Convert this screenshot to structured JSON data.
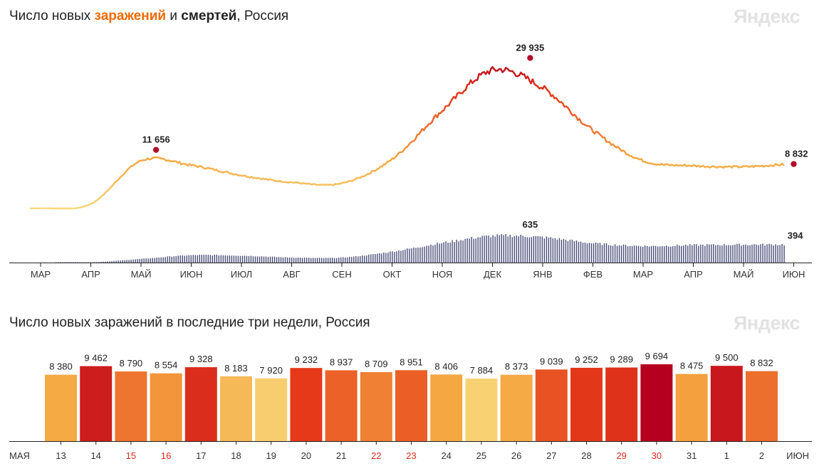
{
  "top": {
    "title_part1": "Число новых ",
    "title_infections": "заражений",
    "title_part2": " и ",
    "title_deaths": "смертей",
    "title_part3": ", Россия",
    "logo": "Яндекс"
  },
  "bottom": {
    "title": "Число новых заражений в последние три недели, Россия",
    "logo": "Яндекс"
  },
  "colors": {
    "low": "#f7d87a",
    "mid": "#f5a640",
    "high": "#e63a1a",
    "peak": "#b4001f",
    "deaths": "#4a4d78",
    "marker": "#b0102a"
  },
  "chart_data": [
    {
      "type": "line",
      "name": "new-infections",
      "title": "Число новых заражений и смертей, Россия",
      "x_months": [
        "МАР",
        "АПР",
        "МАЙ",
        "ИЮН",
        "ИЮЛ",
        "АВГ",
        "СЕН",
        "ОКТ",
        "НОЯ",
        "ДЕК",
        "ЯНВ",
        "ФЕВ",
        "МАР",
        "АПР",
        "МАЙ",
        "ИЮН"
      ],
      "infections_monthly": [
        30,
        900,
        9500,
        8600,
        6600,
        5200,
        5000,
        9800,
        19500,
        27500,
        24000,
        15500,
        9500,
        8500,
        8300,
        8832
      ],
      "infections_annotations": [
        {
          "label": "11 656",
          "value": 11656,
          "month_index": 2.3
        },
        {
          "label": "29 935",
          "value": 29935,
          "month_index": 9.75
        },
        {
          "label": "8 832",
          "value": 8832,
          "month_index": 15.0
        }
      ],
      "deaths_monthly": [
        0,
        5,
        80,
        160,
        150,
        110,
        110,
        240,
        430,
        580,
        550,
        420,
        360,
        380,
        390,
        394
      ],
      "deaths_annotations": [
        {
          "label": "635",
          "value": 635,
          "month_index": 9.75
        },
        {
          "label": "394",
          "value": 394,
          "month_index": 15.0
        }
      ],
      "ylim_infections": [
        0,
        32000
      ],
      "ylim_deaths": [
        0,
        700
      ]
    },
    {
      "type": "bar",
      "name": "last-three-weeks",
      "title": "Число новых заражений в последние три недели, Россия",
      "start_label": "МАЯ",
      "end_label": "ИЮН",
      "categories": [
        "13",
        "14",
        "15",
        "16",
        "17",
        "18",
        "19",
        "20",
        "21",
        "22",
        "23",
        "24",
        "25",
        "26",
        "27",
        "28",
        "29",
        "30",
        "31",
        "1",
        "2"
      ],
      "weekend": [
        false,
        false,
        true,
        true,
        false,
        false,
        false,
        false,
        false,
        true,
        true,
        false,
        false,
        false,
        false,
        false,
        true,
        true,
        false,
        false,
        false
      ],
      "values": [
        8380,
        9462,
        8790,
        8554,
        9328,
        8183,
        7920,
        9232,
        8937,
        8709,
        8951,
        8406,
        7884,
        8373,
        9039,
        9252,
        9289,
        9694,
        8475,
        9500,
        8832
      ],
      "value_labels": [
        "8 380",
        "9 462",
        "8 790",
        "8 554",
        "9 328",
        "8 183",
        "7 920",
        "9 232",
        "8 937",
        "8 709",
        "8 951",
        "8 406",
        "7 884",
        "8 373",
        "9 039",
        "9 252",
        "9 289",
        "9 694",
        "8 475",
        "9 500",
        "8 832"
      ],
      "ylim": [
        0,
        10500
      ]
    }
  ]
}
